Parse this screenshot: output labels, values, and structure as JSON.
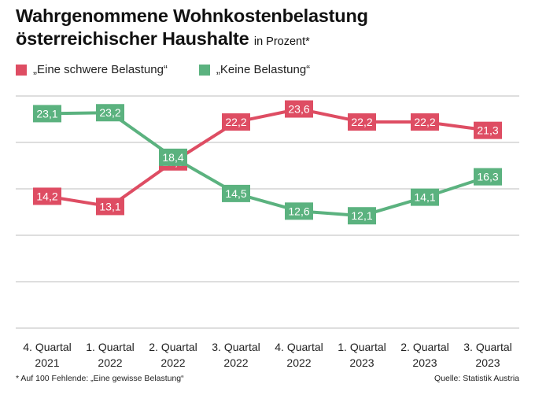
{
  "header": {
    "title_line1": "Wahrgenommene Wohnkostenbelastung",
    "title_line2": "österreichischer Haushalte",
    "title_suffix": "in Prozent*"
  },
  "colors": {
    "schwer": "#de4d63",
    "keine": "#5bb27f",
    "grid": "#bdbdbd",
    "label_text": "#ffffff"
  },
  "chart_data": {
    "type": "line",
    "title": "Wahrgenommene Wohnkostenbelastung österreichischer Haushalte",
    "subtitle": "in Prozent*",
    "categories": [
      [
        "4. Quartal",
        "2021"
      ],
      [
        "1. Quartal",
        "2022"
      ],
      [
        "2. Quartal",
        "2022"
      ],
      [
        "3. Quartal",
        "2022"
      ],
      [
        "4. Quartal",
        "2022"
      ],
      [
        "1. Quartal",
        "2023"
      ],
      [
        "2. Quartal",
        "2023"
      ],
      [
        "3. Quartal",
        "2023"
      ]
    ],
    "series": [
      {
        "name": "„Eine schwere Belastung“",
        "color": "#de4d63",
        "values": [
          14.2,
          13.1,
          17.9,
          22.2,
          23.6,
          22.2,
          22.2,
          21.3
        ],
        "labels": [
          "14,2",
          "13,1",
          "17,9",
          "22,2",
          "23,6",
          "22,2",
          "22,2",
          "21,3"
        ]
      },
      {
        "name": "„Keine Belastung“",
        "color": "#5bb27f",
        "values": [
          23.1,
          23.2,
          18.4,
          14.5,
          12.6,
          12.1,
          14.1,
          16.3
        ],
        "labels": [
          "23,1",
          "23,2",
          "18,4",
          "14,5",
          "12,6",
          "12,1",
          "14,1",
          "16,3"
        ]
      }
    ],
    "ylim": [
      0,
      25
    ],
    "gridlines": [
      0,
      5,
      10,
      15,
      20,
      25
    ],
    "grid": true,
    "y_tick_labels_shown": false,
    "legend_position": "top-left",
    "footnote": "* Auf 100 Fehlende: „Eine gewisse Belastung“",
    "source": "Quelle: Statistik Austria"
  }
}
